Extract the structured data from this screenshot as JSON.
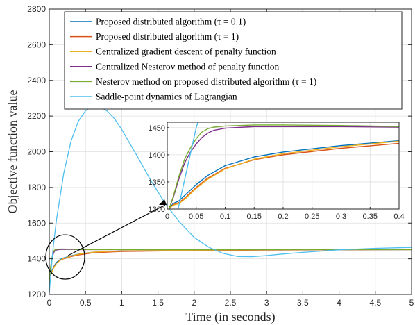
{
  "chart_data": {
    "type": "line",
    "xlabel": "Time (in seconds)",
    "ylabel": "Objective function value",
    "xlim": [
      0,
      5
    ],
    "ylim": [
      1200,
      2800
    ],
    "xticks": [
      0,
      0.5,
      1,
      1.5,
      2,
      2.5,
      3,
      3.5,
      4,
      4.5,
      5
    ],
    "yticks": [
      1200,
      1400,
      1600,
      1800,
      2000,
      2200,
      2400,
      2600,
      2800
    ],
    "grid": true,
    "legend_position": "top",
    "series": [
      {
        "name": "Proposed distributed algorithm (τ = 0.1)",
        "color": "#0072BD",
        "x": [
          0,
          0.003,
          0.01,
          0.02,
          0.03,
          0.05,
          0.07,
          0.1,
          0.15,
          0.2,
          0.3,
          0.4,
          0.6,
          1,
          2,
          3,
          4,
          5
        ],
        "y": [
          1240,
          1300,
          1310,
          1315,
          1325,
          1345,
          1362,
          1380,
          1396,
          1405,
          1417,
          1426,
          1437,
          1444,
          1448,
          1450,
          1451,
          1452
        ]
      },
      {
        "name": "Proposed distributed algorithm (τ = 1)",
        "color": "#D95319",
        "x": [
          0,
          0.003,
          0.01,
          0.02,
          0.03,
          0.05,
          0.07,
          0.1,
          0.15,
          0.2,
          0.3,
          0.4,
          0.6,
          1,
          2,
          3,
          4,
          5
        ],
        "y": [
          1240,
          1300,
          1308,
          1312,
          1320,
          1340,
          1357,
          1375,
          1391,
          1400,
          1412,
          1421,
          1433,
          1441,
          1446,
          1449,
          1450,
          1451
        ]
      },
      {
        "name": "Centralized gradient descent of penalty function",
        "color": "#EDB120",
        "x": [
          0,
          0.003,
          0.01,
          0.02,
          0.03,
          0.05,
          0.07,
          0.1,
          0.15,
          0.2,
          0.3,
          0.4,
          0.6,
          1,
          2,
          3,
          4,
          5
        ],
        "y": [
          1240,
          1300,
          1307,
          1310,
          1318,
          1338,
          1355,
          1374,
          1392,
          1402,
          1415,
          1425,
          1437,
          1444,
          1448,
          1450,
          1451,
          1452
        ]
      },
      {
        "name": "Centralized Nesterov method of penalty function",
        "color": "#7E2F8E",
        "x": [
          0,
          0.003,
          0.01,
          0.02,
          0.03,
          0.04,
          0.05,
          0.06,
          0.07,
          0.08,
          0.1,
          0.15,
          0.2,
          0.3,
          0.4,
          1,
          2,
          3,
          4,
          5
        ],
        "y": [
          1240,
          1300,
          1320,
          1355,
          1385,
          1405,
          1420,
          1432,
          1440,
          1445,
          1449,
          1452,
          1452,
          1452,
          1451,
          1451,
          1451,
          1451,
          1451,
          1451
        ]
      },
      {
        "name": "Nesterov method on proposed distributed algorithm (τ = 1)",
        "color": "#77AC30",
        "x": [
          0,
          0.003,
          0.01,
          0.02,
          0.03,
          0.04,
          0.05,
          0.06,
          0.07,
          0.08,
          0.1,
          0.15,
          0.2,
          0.3,
          0.4,
          1,
          2,
          3,
          4,
          5
        ],
        "y": [
          1240,
          1300,
          1322,
          1360,
          1392,
          1413,
          1430,
          1442,
          1448,
          1451,
          1453,
          1455,
          1455,
          1454,
          1452,
          1451,
          1451,
          1451,
          1451,
          1451
        ]
      },
      {
        "name": "Saddle-point dynamics of Lagrangian",
        "color": "#4DBEEE",
        "x": [
          0,
          0.05,
          0.1,
          0.2,
          0.3,
          0.4,
          0.5,
          0.6,
          0.65,
          0.7,
          0.8,
          0.9,
          1.0,
          1.2,
          1.4,
          1.6,
          1.8,
          2.0,
          2.2,
          2.4,
          2.6,
          2.8,
          3.0,
          3.2,
          3.5,
          4.0,
          4.5,
          5.0
        ],
        "y": [
          1210,
          1450,
          1620,
          1880,
          2060,
          2170,
          2230,
          2255,
          2256,
          2252,
          2228,
          2185,
          2125,
          1985,
          1840,
          1710,
          1605,
          1520,
          1465,
          1430,
          1413,
          1412,
          1418,
          1426,
          1436,
          1450,
          1459,
          1464
        ]
      }
    ],
    "inset": {
      "xlim": [
        0,
        0.4
      ],
      "ylim": [
        1300,
        1460
      ],
      "xticks": [
        0,
        0.05,
        0.1,
        0.15,
        0.2,
        0.25,
        0.3,
        0.35,
        0.4
      ],
      "yticks": [
        1300,
        1350,
        1400,
        1450
      ],
      "grid": true
    }
  }
}
